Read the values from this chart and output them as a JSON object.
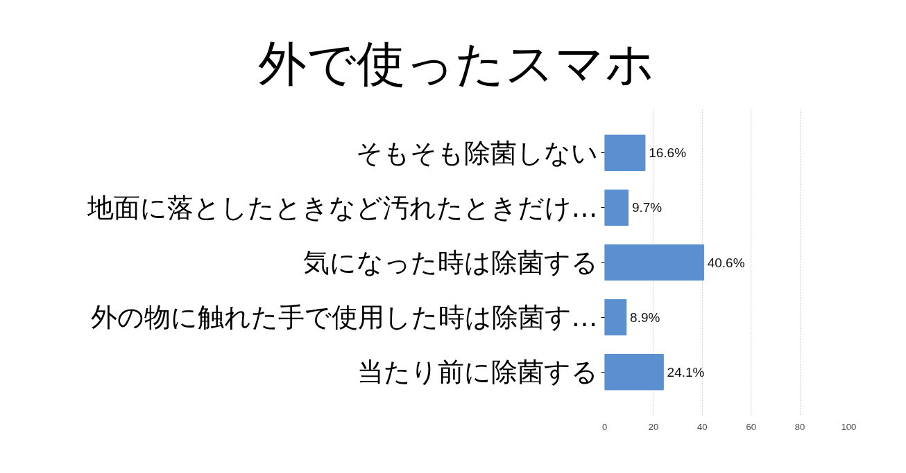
{
  "chart_data": {
    "type": "bar",
    "orientation": "horizontal",
    "title": "外で使ったスマホ",
    "categories": [
      "そもそも除菌しない",
      "地面に落としたときなど汚れたときだけ…",
      "気になった時は除菌する",
      "外の物に触れた手で使用した時は除菌す…",
      "当たり前に除菌する"
    ],
    "values": [
      16.6,
      9.7,
      40.6,
      8.9,
      24.1
    ],
    "value_labels": [
      "16.6%",
      "9.7%",
      "40.6%",
      "8.9%",
      "24.1%"
    ],
    "color": "#5b8fd0",
    "xlim": [
      0,
      100
    ],
    "xticks": [
      0,
      20,
      40,
      60,
      80,
      100
    ],
    "grid": "x"
  }
}
